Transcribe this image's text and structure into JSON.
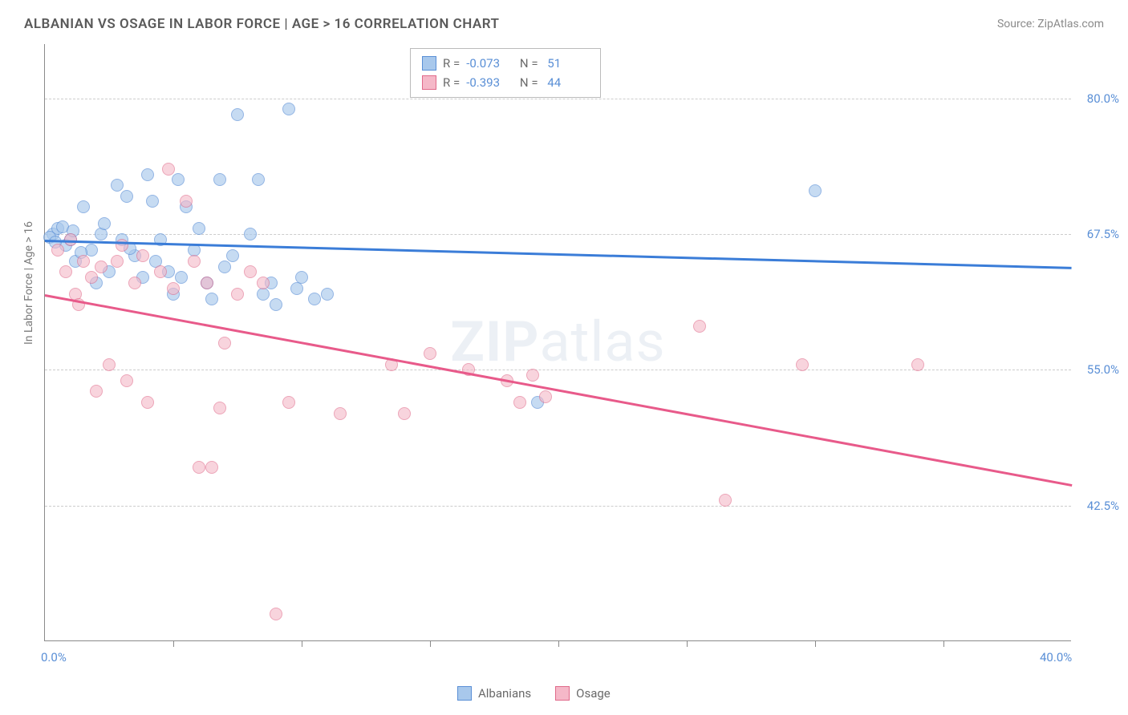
{
  "title": "ALBANIAN VS OSAGE IN LABOR FORCE | AGE > 16 CORRELATION CHART",
  "source": "Source: ZipAtlas.com",
  "ylabel": "In Labor Force | Age > 16",
  "watermark_bold": "ZIP",
  "watermark_rest": "atlas",
  "chart": {
    "type": "scatter",
    "xlim": [
      0,
      40
    ],
    "ylim": [
      30,
      85
    ],
    "background_color": "#ffffff",
    "grid_color": "#cccccc",
    "y_gridlines": [
      42.5,
      55.0,
      67.5,
      80.0
    ],
    "y_tick_labels": [
      "42.5%",
      "55.0%",
      "67.5%",
      "80.0%"
    ],
    "x_ticks": [
      5,
      10,
      15,
      20,
      25,
      30,
      35
    ],
    "x_labels": [
      {
        "val": 0,
        "text": "0.0%"
      },
      {
        "val": 40,
        "text": "40.0%"
      }
    ],
    "series": [
      {
        "name": "Albanians",
        "marker_fill": "#a8c8ec",
        "marker_stroke": "#5a8fd6",
        "marker_opacity": 0.65,
        "marker_radius": 8,
        "line_color": "#3b7dd8",
        "trend": {
          "x1": 0,
          "y1": 67.0,
          "x2": 40,
          "y2": 64.5
        },
        "R": "-0.073",
        "N": "51",
        "points": [
          [
            0.3,
            67.5
          ],
          [
            0.5,
            68.0
          ],
          [
            0.8,
            66.5
          ],
          [
            1.0,
            67.0
          ],
          [
            1.2,
            65.0
          ],
          [
            1.5,
            70.0
          ],
          [
            1.8,
            66.0
          ],
          [
            2.0,
            63.0
          ],
          [
            2.2,
            67.5
          ],
          [
            2.5,
            64.0
          ],
          [
            2.8,
            72.0
          ],
          [
            3.0,
            67.0
          ],
          [
            3.2,
            71.0
          ],
          [
            3.5,
            65.5
          ],
          [
            3.8,
            63.5
          ],
          [
            4.0,
            73.0
          ],
          [
            4.2,
            70.5
          ],
          [
            4.5,
            67.0
          ],
          [
            4.8,
            64.0
          ],
          [
            5.0,
            62.0
          ],
          [
            5.2,
            72.5
          ],
          [
            5.5,
            70.0
          ],
          [
            5.8,
            66.0
          ],
          [
            6.0,
            68.0
          ],
          [
            6.5,
            61.5
          ],
          [
            6.8,
            72.5
          ],
          [
            7.0,
            64.5
          ],
          [
            7.5,
            78.5
          ],
          [
            8.0,
            67.5
          ],
          [
            8.3,
            72.5
          ],
          [
            8.5,
            62.0
          ],
          [
            8.8,
            63.0
          ],
          [
            9.0,
            61.0
          ],
          [
            9.5,
            79.0
          ],
          [
            9.8,
            62.5
          ],
          [
            10.0,
            63.5
          ],
          [
            10.5,
            61.5
          ],
          [
            11.0,
            62.0
          ],
          [
            19.2,
            52.0
          ],
          [
            30.0,
            71.5
          ],
          [
            0.2,
            67.2
          ],
          [
            0.4,
            66.8
          ],
          [
            0.7,
            68.2
          ],
          [
            1.1,
            67.8
          ],
          [
            1.4,
            65.8
          ],
          [
            2.3,
            68.5
          ],
          [
            3.3,
            66.2
          ],
          [
            4.3,
            65.0
          ],
          [
            5.3,
            63.5
          ],
          [
            6.3,
            63.0
          ],
          [
            7.3,
            65.5
          ]
        ]
      },
      {
        "name": "Osage",
        "marker_fill": "#f5b8c8",
        "marker_stroke": "#e06a8a",
        "marker_opacity": 0.6,
        "marker_radius": 8,
        "line_color": "#e85a8a",
        "trend": {
          "x1": 0,
          "y1": 62.0,
          "x2": 40,
          "y2": 44.5
        },
        "R": "-0.393",
        "N": "44",
        "points": [
          [
            0.5,
            66.0
          ],
          [
            0.8,
            64.0
          ],
          [
            1.0,
            67.0
          ],
          [
            1.2,
            62.0
          ],
          [
            1.5,
            65.0
          ],
          [
            1.8,
            63.5
          ],
          [
            2.0,
            53.0
          ],
          [
            2.2,
            64.5
          ],
          [
            2.5,
            55.5
          ],
          [
            2.8,
            65.0
          ],
          [
            3.0,
            66.5
          ],
          [
            3.2,
            54.0
          ],
          [
            3.5,
            63.0
          ],
          [
            3.8,
            65.5
          ],
          [
            4.0,
            52.0
          ],
          [
            4.5,
            64.0
          ],
          [
            4.8,
            73.5
          ],
          [
            5.0,
            62.5
          ],
          [
            5.5,
            70.5
          ],
          [
            5.8,
            65.0
          ],
          [
            6.0,
            46.0
          ],
          [
            6.3,
            63.0
          ],
          [
            6.5,
            46.0
          ],
          [
            6.8,
            51.5
          ],
          [
            7.0,
            57.5
          ],
          [
            7.5,
            62.0
          ],
          [
            8.0,
            64.0
          ],
          [
            8.5,
            63.0
          ],
          [
            9.0,
            32.5
          ],
          [
            9.5,
            52.0
          ],
          [
            11.5,
            51.0
          ],
          [
            13.5,
            55.5
          ],
          [
            14.0,
            51.0
          ],
          [
            15.0,
            56.5
          ],
          [
            16.5,
            55.0
          ],
          [
            18.0,
            54.0
          ],
          [
            18.5,
            52.0
          ],
          [
            19.0,
            54.5
          ],
          [
            19.5,
            52.5
          ],
          [
            25.5,
            59.0
          ],
          [
            26.5,
            43.0
          ],
          [
            29.5,
            55.5
          ],
          [
            34.0,
            55.5
          ],
          [
            1.3,
            61.0
          ]
        ]
      }
    ]
  },
  "legend": [
    {
      "label": "Albanians",
      "fill": "#a8c8ec",
      "stroke": "#5a8fd6"
    },
    {
      "label": "Osage",
      "fill": "#f5b8c8",
      "stroke": "#e06a8a"
    }
  ]
}
